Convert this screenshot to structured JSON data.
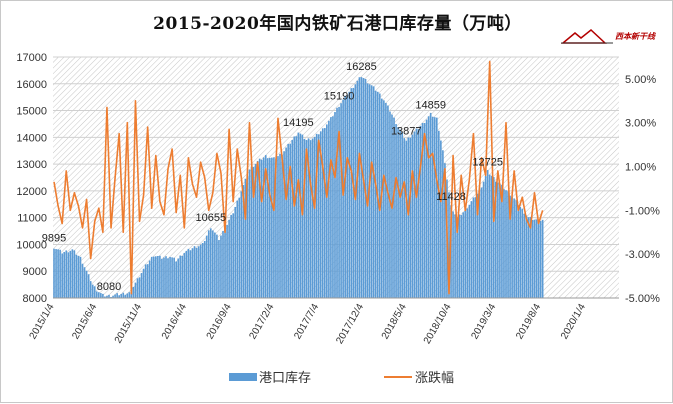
{
  "title": "2015-2020年国内铁矿石港口库存量（万吨）",
  "logo": {
    "text": "西本新干线",
    "accent": "#b30000"
  },
  "colors": {
    "bar": "#5b9bd5",
    "line": "#ed7d31",
    "grid": "#d9d9d9",
    "hatch": "#bfbfbf",
    "axis_text": "#333333"
  },
  "chart_data": {
    "type": "bar",
    "title": "2015-2020年国内铁矿石港口库存量（万吨）",
    "grid": true,
    "legend_position": "bottom",
    "x_tick_labels": [
      "2015/1/4",
      "2015/6/4",
      "2015/11/4",
      "2016/4/4",
      "2016/9/4",
      "2017/2/4",
      "2017/7/4",
      "2017/12/4",
      "2018/5/4",
      "2018/10/4",
      "2019/3/4",
      "2019/8/4",
      "2020/1/4"
    ],
    "x_tick_weeks": [
      0,
      21,
      43,
      65,
      87,
      108,
      130,
      152,
      173,
      195,
      217,
      239,
      261
    ],
    "y_left": {
      "ylim": [
        8000,
        17000
      ],
      "ticks": [
        8000,
        9000,
        10000,
        11000,
        12000,
        13000,
        14000,
        15000,
        16000,
        17000
      ]
    },
    "y_right": {
      "ylim": [
        -5,
        6
      ],
      "ticks": [
        5,
        3,
        1,
        -1,
        -3,
        -5
      ],
      "tick_labels": [
        "5.00%",
        "3.00%",
        "1.00%",
        "-1.00%",
        "-3.00%",
        "-5.00%"
      ]
    },
    "series": [
      {
        "name": "港口库存",
        "type": "bar",
        "axis": "left",
        "anchors": [
          [
            0,
            9895
          ],
          [
            4,
            9700
          ],
          [
            9,
            9800
          ],
          [
            13,
            9500
          ],
          [
            16,
            9000
          ],
          [
            19,
            8500
          ],
          [
            21,
            8300
          ],
          [
            24,
            8100
          ],
          [
            27,
            8080
          ],
          [
            33,
            8150
          ],
          [
            37,
            8200
          ],
          [
            41,
            8700
          ],
          [
            45,
            9200
          ],
          [
            49,
            9600
          ],
          [
            53,
            9500
          ],
          [
            57,
            9550
          ],
          [
            60,
            9400
          ],
          [
            64,
            9700
          ],
          [
            69,
            9900
          ],
          [
            73,
            10000
          ],
          [
            77,
            10655
          ],
          [
            81,
            10200
          ],
          [
            84,
            10600
          ],
          [
            88,
            11200
          ],
          [
            92,
            12000
          ],
          [
            96,
            12800
          ],
          [
            100,
            13100
          ],
          [
            104,
            13300
          ],
          [
            108,
            13200
          ],
          [
            112,
            13400
          ],
          [
            116,
            13800
          ],
          [
            120,
            14195
          ],
          [
            124,
            13900
          ],
          [
            128,
            14000
          ],
          [
            132,
            14300
          ],
          [
            136,
            14700
          ],
          [
            140,
            15190
          ],
          [
            144,
            15600
          ],
          [
            148,
            16000
          ],
          [
            151,
            16285
          ],
          [
            155,
            16000
          ],
          [
            159,
            15700
          ],
          [
            162,
            15400
          ],
          [
            165,
            15000
          ],
          [
            169,
            14400
          ],
          [
            173,
            13877
          ],
          [
            177,
            14200
          ],
          [
            181,
            14500
          ],
          [
            185,
            14859
          ],
          [
            188,
            14700
          ],
          [
            191,
            13500
          ],
          [
            195,
            11428
          ],
          [
            198,
            11000
          ],
          [
            201,
            11200
          ],
          [
            205,
            11600
          ],
          [
            209,
            12000
          ],
          [
            213,
            12725
          ],
          [
            217,
            12400
          ],
          [
            221,
            12100
          ],
          [
            225,
            11800
          ],
          [
            229,
            11400
          ],
          [
            233,
            11000
          ],
          [
            237,
            10900
          ]
        ]
      },
      {
        "name": "涨跌幅",
        "type": "line",
        "axis": "right",
        "anchors": [
          [
            0,
            0.3
          ],
          [
            2,
            -0.8
          ],
          [
            4,
            -1.6
          ],
          [
            6,
            0.8
          ],
          [
            8,
            -1.0
          ],
          [
            10,
            -0.2
          ],
          [
            12,
            -0.8
          ],
          [
            14,
            -1.8
          ],
          [
            16,
            -0.5
          ],
          [
            18,
            -3.2
          ],
          [
            20,
            -1.5
          ],
          [
            22,
            -0.9
          ],
          [
            24,
            -2.0
          ],
          [
            26,
            3.7
          ],
          [
            28,
            -1.8
          ],
          [
            30,
            0.5
          ],
          [
            32,
            2.5
          ],
          [
            34,
            -2.0
          ],
          [
            36,
            3.0
          ],
          [
            38,
            -4.8
          ],
          [
            40,
            4.0
          ],
          [
            42,
            -1.5
          ],
          [
            44,
            -0.3
          ],
          [
            46,
            2.8
          ],
          [
            48,
            -0.9
          ],
          [
            50,
            1.5
          ],
          [
            52,
            -0.6
          ],
          [
            54,
            -1.2
          ],
          [
            56,
            0.9
          ],
          [
            58,
            1.8
          ],
          [
            60,
            -1.1
          ],
          [
            62,
            0.6
          ],
          [
            64,
            -1.8
          ],
          [
            66,
            1.4
          ],
          [
            68,
            0.2
          ],
          [
            70,
            -0.4
          ],
          [
            72,
            1.2
          ],
          [
            74,
            0.5
          ],
          [
            76,
            -1.0
          ],
          [
            78,
            -0.2
          ],
          [
            80,
            1.6
          ],
          [
            82,
            0.7
          ],
          [
            84,
            -2.0
          ],
          [
            86,
            2.7
          ],
          [
            88,
            -0.6
          ],
          [
            90,
            1.8
          ],
          [
            92,
            0.5
          ],
          [
            94,
            -1.4
          ],
          [
            96,
            3.0
          ],
          [
            98,
            -0.4
          ],
          [
            100,
            1.2
          ],
          [
            102,
            -0.6
          ],
          [
            104,
            0.9
          ],
          [
            106,
            -0.3
          ],
          [
            108,
            -1.0
          ],
          [
            110,
            3.2
          ],
          [
            112,
            1.4
          ],
          [
            114,
            -0.5
          ],
          [
            116,
            1.0
          ],
          [
            118,
            -0.8
          ],
          [
            120,
            0.4
          ],
          [
            122,
            -1.2
          ],
          [
            124,
            1.8
          ],
          [
            126,
            0.2
          ],
          [
            128,
            -0.9
          ],
          [
            130,
            2.2
          ],
          [
            132,
            1.0
          ],
          [
            134,
            -0.4
          ],
          [
            136,
            1.3
          ],
          [
            138,
            0.5
          ],
          [
            140,
            2.6
          ],
          [
            142,
            -0.3
          ],
          [
            144,
            1.4
          ],
          [
            146,
            0.8
          ],
          [
            148,
            -0.5
          ],
          [
            150,
            1.6
          ],
          [
            152,
            0.4
          ],
          [
            154,
            -0.8
          ],
          [
            156,
            1.2
          ],
          [
            158,
            0.2
          ],
          [
            160,
            -1.0
          ],
          [
            162,
            0.6
          ],
          [
            164,
            -0.2
          ],
          [
            166,
            -0.9
          ],
          [
            168,
            0.5
          ],
          [
            170,
            -0.4
          ],
          [
            172,
            0.3
          ],
          [
            174,
            -1.2
          ],
          [
            176,
            0.8
          ],
          [
            178,
            -0.4
          ],
          [
            180,
            1.0
          ],
          [
            182,
            2.5
          ],
          [
            184,
            1.4
          ],
          [
            186,
            1.6
          ],
          [
            188,
            0.4
          ],
          [
            190,
            -0.6
          ],
          [
            192,
            0.9
          ],
          [
            194,
            -4.8
          ],
          [
            196,
            1.5
          ],
          [
            198,
            -2.0
          ],
          [
            200,
            0.6
          ],
          [
            202,
            -1.0
          ],
          [
            204,
            0.4
          ],
          [
            206,
            2.5
          ],
          [
            208,
            -1.2
          ],
          [
            210,
            1.4
          ],
          [
            212,
            0.6
          ],
          [
            214,
            5.8
          ],
          [
            216,
            -1.5
          ],
          [
            218,
            0.8
          ],
          [
            220,
            -0.6
          ],
          [
            222,
            3.0
          ],
          [
            224,
            -1.4
          ],
          [
            226,
            0.8
          ],
          [
            228,
            -1.0
          ],
          [
            230,
            -0.4
          ],
          [
            232,
            -1.4
          ],
          [
            234,
            -1.8
          ],
          [
            236,
            -0.2
          ],
          [
            238,
            -1.6
          ],
          [
            240,
            -1.0
          ]
        ]
      }
    ],
    "annotations": [
      {
        "week": 0,
        "value": 9895,
        "text": "9895"
      },
      {
        "week": 27,
        "value": 8080,
        "text": "8080"
      },
      {
        "week": 77,
        "value": 10655,
        "text": "10655"
      },
      {
        "week": 120,
        "value": 14195,
        "text": "14195"
      },
      {
        "week": 140,
        "value": 15190,
        "text": "15190"
      },
      {
        "week": 151,
        "value": 16285,
        "text": "16285"
      },
      {
        "week": 173,
        "value": 13877,
        "text": "13877"
      },
      {
        "week": 185,
        "value": 14859,
        "text": "14859"
      },
      {
        "week": 195,
        "value": 11428,
        "text": "11428"
      },
      {
        "week": 213,
        "value": 12725,
        "text": "12725"
      }
    ],
    "legend": [
      "港口库存",
      "涨跌幅"
    ]
  }
}
